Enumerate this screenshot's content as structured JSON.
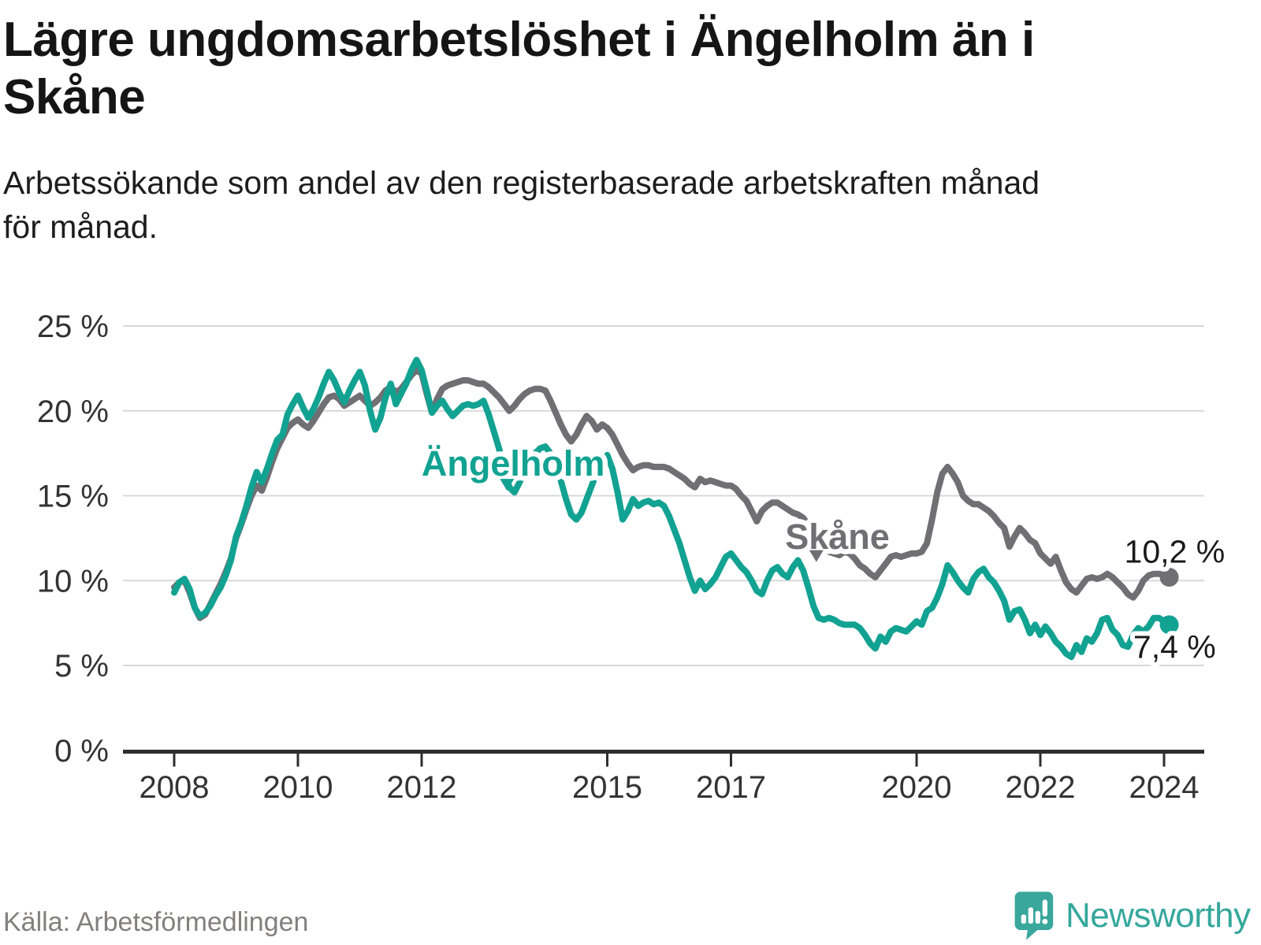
{
  "header": {
    "title_line1": "Lägre ungdomsarbetslöshet i Ängelholm än i",
    "title_line2": "Skåne",
    "subtitle_line1": "Arbetssökande som andel av den registerbaserade arbetskraften månad",
    "subtitle_line2": "för månad."
  },
  "footer": {
    "source": "Källa: Arbetsförmedlingen",
    "brand": "Newsworthy",
    "brand_color": "#35a79c",
    "logo_icon": "map-pin-bar-chart-icon"
  },
  "chart_data": {
    "type": "line",
    "x_start": 2008,
    "x_step_months": 1,
    "x_ticks": [
      2008,
      2010,
      2012,
      2015,
      2017,
      2020,
      2022,
      2024
    ],
    "y_ticks": [
      0,
      5,
      10,
      15,
      20,
      25
    ],
    "y_tick_suffix": " %",
    "ylim": [
      0,
      26.5
    ],
    "grid": "horizontal-only",
    "legend_position": "inline-labels",
    "axis_color": "#2e2e2e",
    "grid_color": "#d8d8d8",
    "tick_label_color": "#333333",
    "value_label_color": "#1a1a1a",
    "series": [
      {
        "name": "Skåne",
        "color": "#6f6f74",
        "end_value_label": "10,2 %",
        "values": [
          9.6,
          9.9,
          10.0,
          9.3,
          8.4,
          7.8,
          8.0,
          8.6,
          9.2,
          9.8,
          10.5,
          11.3,
          12.5,
          13.3,
          14.2,
          15.0,
          15.6,
          15.3,
          16.1,
          17.0,
          17.8,
          18.4,
          19.0,
          19.3,
          19.5,
          19.2,
          19.0,
          19.4,
          19.9,
          20.4,
          20.8,
          20.9,
          20.7,
          20.3,
          20.5,
          20.7,
          20.9,
          20.6,
          20.3,
          20.5,
          20.8,
          21.2,
          21.4,
          21.1,
          21.3,
          21.7,
          22.1,
          22.4,
          22.2,
          21.0,
          19.9,
          20.7,
          21.3,
          21.5,
          21.6,
          21.7,
          21.8,
          21.8,
          21.7,
          21.6,
          21.6,
          21.4,
          21.1,
          20.8,
          20.4,
          20.0,
          20.3,
          20.7,
          21.0,
          21.2,
          21.3,
          21.3,
          21.2,
          20.6,
          19.9,
          19.2,
          18.6,
          18.2,
          18.6,
          19.2,
          19.7,
          19.4,
          18.9,
          19.2,
          19.0,
          18.6,
          18.0,
          17.4,
          16.9,
          16.5,
          16.7,
          16.8,
          16.8,
          16.7,
          16.7,
          16.7,
          16.6,
          16.4,
          16.2,
          16.0,
          15.7,
          15.5,
          16.0,
          15.8,
          15.9,
          15.8,
          15.7,
          15.6,
          15.6,
          15.4,
          15.0,
          14.7,
          14.1,
          13.5,
          14.1,
          14.4,
          14.6,
          14.6,
          14.4,
          14.2,
          14.0,
          13.9,
          13.7,
          13.3,
          12.8,
          12.2,
          11.9,
          11.7,
          11.6,
          11.5,
          11.7,
          11.6,
          11.3,
          10.9,
          10.7,
          10.4,
          10.2,
          10.6,
          11.0,
          11.4,
          11.5,
          11.4,
          11.5,
          11.6,
          11.6,
          11.7,
          12.2,
          13.6,
          15.2,
          16.3,
          16.7,
          16.3,
          15.8,
          15.0,
          14.7,
          14.5,
          14.5,
          14.3,
          14.1,
          13.8,
          13.4,
          13.1,
          12.0,
          12.6,
          13.1,
          12.8,
          12.4,
          12.2,
          11.6,
          11.3,
          11.0,
          11.4,
          10.6,
          9.9,
          9.5,
          9.3,
          9.7,
          10.1,
          10.2,
          10.1,
          10.2,
          10.4,
          10.2,
          9.9,
          9.6,
          9.2,
          9.0,
          9.4,
          10.0,
          10.3,
          10.4,
          10.4,
          10.4,
          10.2
        ]
      },
      {
        "name": "Ängelholm",
        "color": "#12a292",
        "end_value_label": "7,4 %",
        "values": [
          9.3,
          9.9,
          10.1,
          9.5,
          8.4,
          7.9,
          8.1,
          8.5,
          9.1,
          9.6,
          10.3,
          11.2,
          12.6,
          13.4,
          14.4,
          15.5,
          16.4,
          15.8,
          16.6,
          17.5,
          18.3,
          18.6,
          19.8,
          20.4,
          20.9,
          20.2,
          19.6,
          20.1,
          20.8,
          21.6,
          22.3,
          21.8,
          21.1,
          20.5,
          21.2,
          21.8,
          22.3,
          21.5,
          20.0,
          18.9,
          19.6,
          20.8,
          21.6,
          20.4,
          21.0,
          21.6,
          22.4,
          23.0,
          22.4,
          21.2,
          19.9,
          20.3,
          20.6,
          20.1,
          19.7,
          20.0,
          20.3,
          20.4,
          20.3,
          20.4,
          20.6,
          19.8,
          18.8,
          17.8,
          16.6,
          15.5,
          15.2,
          15.8,
          16.4,
          17.0,
          17.5,
          17.8,
          17.9,
          17.5,
          16.8,
          15.9,
          14.8,
          13.9,
          13.6,
          14.0,
          14.8,
          15.6,
          16.4,
          17.0,
          17.4,
          16.6,
          15.2,
          13.6,
          14.1,
          14.8,
          14.4,
          14.6,
          14.7,
          14.5,
          14.6,
          14.4,
          13.8,
          13.0,
          12.2,
          11.2,
          10.2,
          9.4,
          10.0,
          9.5,
          9.8,
          10.2,
          10.8,
          11.4,
          11.6,
          11.2,
          10.8,
          10.5,
          10.0,
          9.4,
          9.2,
          10.0,
          10.6,
          10.8,
          10.4,
          10.2,
          10.8,
          11.2,
          10.6,
          9.6,
          8.5,
          7.8,
          7.7,
          7.8,
          7.7,
          7.5,
          7.4,
          7.4,
          7.4,
          7.2,
          6.8,
          6.3,
          6.0,
          6.7,
          6.4,
          7.0,
          7.2,
          7.1,
          7.0,
          7.3,
          7.6,
          7.4,
          8.2,
          8.4,
          9.0,
          9.8,
          10.9,
          10.5,
          10.0,
          9.6,
          9.3,
          10.1,
          10.5,
          10.7,
          10.2,
          9.9,
          9.4,
          8.8,
          7.7,
          8.2,
          8.3,
          7.7,
          6.9,
          7.4,
          6.8,
          7.3,
          6.9,
          6.4,
          6.1,
          5.7,
          5.5,
          6.2,
          5.8,
          6.6,
          6.4,
          6.9,
          7.7,
          7.8,
          7.1,
          6.8,
          6.2,
          6.1,
          6.8,
          7.2,
          7.0,
          7.3,
          7.8,
          7.8,
          7.6,
          7.4
        ]
      }
    ],
    "annotations": [
      {
        "text": "Ängelholm",
        "color": "#12a292",
        "t": 2013.48,
        "v": 16.18,
        "pointer_t": 2013.38,
        "pointer_v": 15.3,
        "font_size": 45
      },
      {
        "text": "Skåne",
        "color": "#6f6f74",
        "t": 2018.72,
        "v": 11.87,
        "pointer_t": 2018.38,
        "pointer_v": 11.1,
        "font_size": 45
      }
    ],
    "end_labels": [
      {
        "text": "10,2 %",
        "t": 2024.17,
        "v": 11.05
      },
      {
        "text": "7,4 %",
        "t": 2024.17,
        "v": 5.45
      }
    ]
  }
}
